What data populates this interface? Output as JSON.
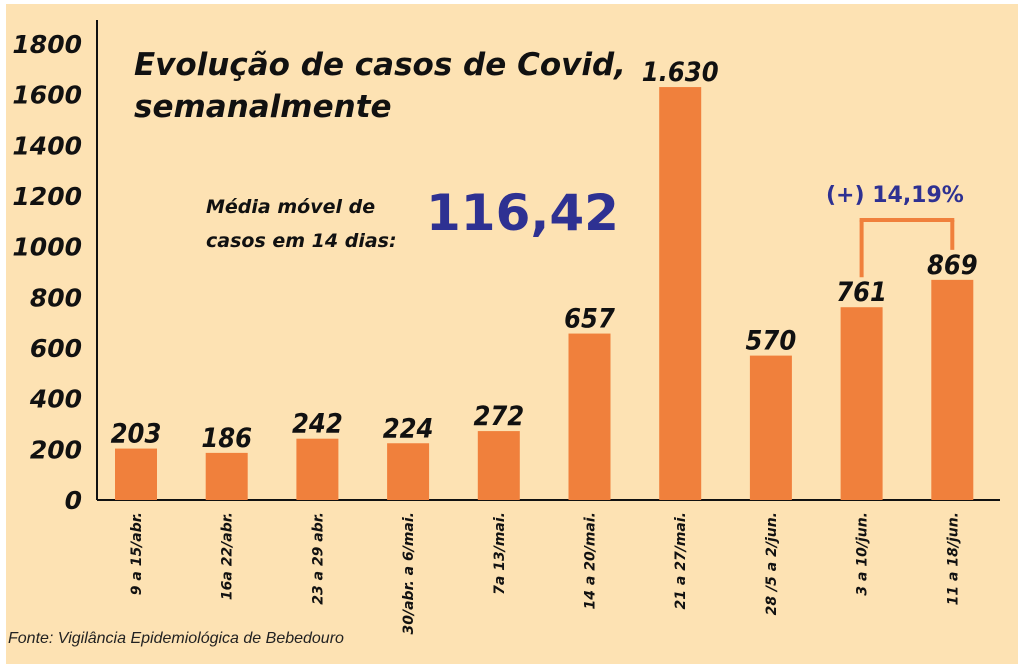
{
  "chart_data": {
    "type": "bar",
    "title": "Evolução de casos de Covid,\nsemanalmente",
    "categories": [
      "9 a 15/abr.",
      "16a 22/abr.",
      "23 a 29 abr.",
      "30/abr. a 6/mai.",
      "7a 13/mai.",
      "14 a 20/mai.",
      "21 a 27/mai.",
      "28 /5 a 2/jun.",
      "3 a 10/jun.",
      "11 a 18/jun."
    ],
    "values": [
      203,
      186,
      242,
      224,
      272,
      657,
      1630,
      570,
      761,
      869
    ],
    "value_labels": [
      "203",
      "186",
      "242",
      "224",
      "272",
      "657",
      "1.630",
      "570",
      "761",
      "869"
    ],
    "yticks": [
      "0",
      "200",
      "400",
      "600",
      "800",
      "1000",
      "1200",
      "1400",
      "1600",
      "1800"
    ],
    "ylim": [
      0,
      1800
    ],
    "bar_color": "#f0803c",
    "background": "#fde2b3",
    "accent_color": "#2e3192",
    "annotation": {
      "label": "Média móvel de\ncasos em 14 dias:",
      "value": "116,42"
    },
    "growth": {
      "label": "(+) 14,19%",
      "from_index": 8,
      "to_index": 9
    },
    "source": "Fonte: Vigilância Epidemiológica de Bebedouro"
  }
}
